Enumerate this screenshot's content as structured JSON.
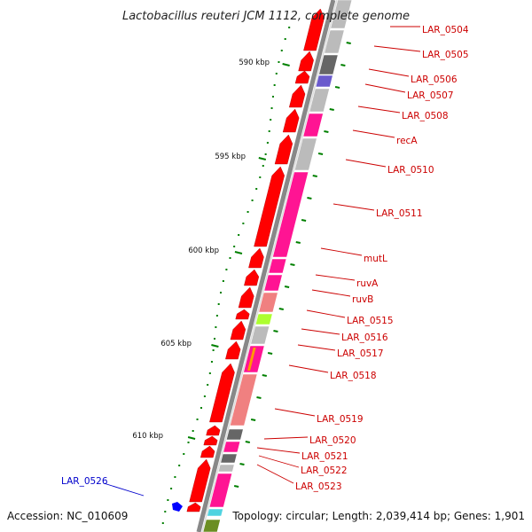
{
  "title": "Lactobacillus reuteri JCM 1112, complete genome",
  "footer": {
    "accession": "Accession: NC_010609",
    "summary": "Topology: circular; Length: 2,039,414 bp; Genes: 1,901"
  },
  "scale_labels": [
    "590 kbp",
    "595 kbp",
    "600 kbp",
    "605 kbp",
    "610 kbp"
  ],
  "gene_labels": [
    {
      "text": "LAR_0504",
      "color": "#cc0000"
    },
    {
      "text": "LAR_0505",
      "color": "#cc0000"
    },
    {
      "text": "LAR_0506",
      "color": "#cc0000"
    },
    {
      "text": "LAR_0507",
      "color": "#cc0000"
    },
    {
      "text": "LAR_0508",
      "color": "#cc0000"
    },
    {
      "text": "recA",
      "color": "#cc0000"
    },
    {
      "text": "LAR_0510",
      "color": "#cc0000"
    },
    {
      "text": "LAR_0511",
      "color": "#cc0000"
    },
    {
      "text": "mutL",
      "color": "#cc0000"
    },
    {
      "text": "ruvA",
      "color": "#cc0000"
    },
    {
      "text": "ruvB",
      "color": "#cc0000"
    },
    {
      "text": "LAR_0515",
      "color": "#cc0000"
    },
    {
      "text": "LAR_0516",
      "color": "#cc0000"
    },
    {
      "text": "LAR_0517",
      "color": "#cc0000"
    },
    {
      "text": "LAR_0518",
      "color": "#cc0000"
    },
    {
      "text": "LAR_0519",
      "color": "#cc0000"
    },
    {
      "text": "LAR_0520",
      "color": "#cc0000"
    },
    {
      "text": "LAR_0521",
      "color": "#cc0000"
    },
    {
      "text": "LAR_0522",
      "color": "#cc0000"
    },
    {
      "text": "LAR_0523",
      "color": "#cc0000"
    },
    {
      "text": "LAR_0526",
      "color": "#0000cc"
    }
  ],
  "colors": {
    "backbone": "#888888",
    "cds": "#ff0000",
    "pink": "#ff1493",
    "light_pink": "#f08080",
    "gray": "#bbbbbb",
    "dark_gray": "#666666",
    "slate_blue": "#6a5acd",
    "yellow_green": "#adff2f",
    "tick_green": "#008000",
    "label_red": "#cc0000",
    "label_blue": "#0000cc"
  }
}
